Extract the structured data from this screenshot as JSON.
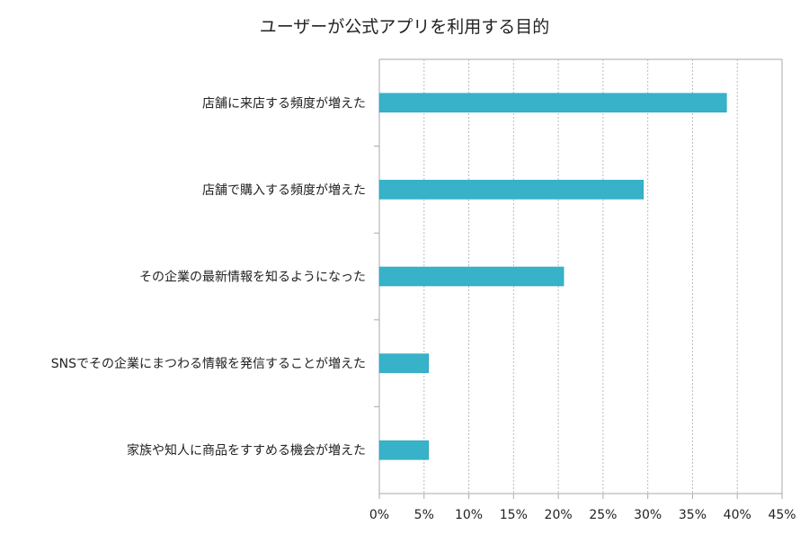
{
  "chart_data": {
    "type": "bar",
    "orientation": "horizontal",
    "title": "ユーザーが公式アプリを利用する目的",
    "categories": [
      "店舗に来店する頻度が増えた",
      "店舗で購入する頻度が増えた",
      "その企業の最新情報を知るようになった",
      "SNSでその企業にまつわる情報を発信することが増えた",
      "家族や知人に商品をすすめる機会が増えた"
    ],
    "values": [
      38.8,
      29.5,
      20.6,
      5.5,
      5.5
    ],
    "unit": "%",
    "xlim": [
      0,
      45
    ],
    "xticks": [
      "0%",
      "5%",
      "10%",
      "15%",
      "20%",
      "25%",
      "30%",
      "35%",
      "40%",
      "45%"
    ],
    "grid": "vertical dotted",
    "legend": "none",
    "colors": {
      "bar": "#37b2c9",
      "bar_edge": "#25a4bd",
      "axis": "#aaaaaa",
      "grid": "#bbbbbb"
    }
  }
}
